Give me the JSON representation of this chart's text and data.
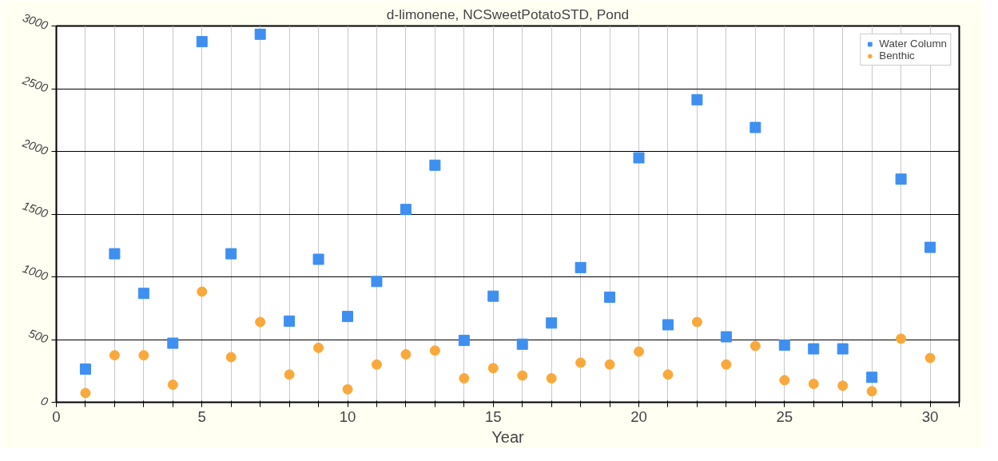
{
  "chart_data": {
    "type": "scatter",
    "title": "d-limonene, NCSweetPotatoSTD, Pond",
    "xlabel": "Year",
    "x": [
      1,
      2,
      3,
      4,
      5,
      6,
      7,
      8,
      9,
      10,
      11,
      12,
      13,
      14,
      15,
      16,
      17,
      18,
      19,
      20,
      21,
      22,
      23,
      24,
      25,
      26,
      27,
      28,
      29,
      30
    ],
    "series": [
      {
        "name": "Water Column",
        "color": "#3f8ff0",
        "marker": "square",
        "values": [
          265,
          1184,
          868,
          471,
          2875,
          1184,
          2934,
          647,
          1140,
          684,
          963,
          1537,
          1890,
          493,
          846,
          463,
          632,
          1074,
          838,
          1949,
          618,
          2412,
          522,
          2191,
          456,
          426,
          426,
          199,
          1779,
          1235
        ]
      },
      {
        "name": "Benthic",
        "color": "#f9a93b",
        "marker": "circle",
        "values": [
          74,
          375,
          375,
          140,
          882,
          360,
          640,
          221,
          434,
          103,
          301,
          382,
          412,
          191,
          272,
          213,
          191,
          316,
          301,
          404,
          221,
          640,
          301,
          449,
          176,
          147,
          132,
          88,
          507,
          353
        ]
      }
    ],
    "xlim": [
      0,
      31
    ],
    "xticks": [
      0,
      {
        "value": 1,
        "label": null
      },
      {
        "value": 2,
        "label": null
      },
      {
        "value": 3,
        "label": null
      },
      {
        "value": 4,
        "label": null
      },
      5,
      {
        "value": 6,
        "label": null
      },
      {
        "value": 7,
        "label": null
      },
      {
        "value": 8,
        "label": null
      },
      {
        "value": 9,
        "label": null
      },
      10,
      {
        "value": 11,
        "label": null
      },
      {
        "value": 12,
        "label": null
      },
      {
        "value": 13,
        "label": null
      },
      {
        "value": 14,
        "label": null
      },
      15,
      {
        "value": 16,
        "label": null
      },
      {
        "value": 17,
        "label": null
      },
      {
        "value": 18,
        "label": null
      },
      {
        "value": 19,
        "label": null
      },
      20,
      {
        "value": 21,
        "label": null
      },
      {
        "value": 22,
        "label": null
      },
      {
        "value": 23,
        "label": null
      },
      {
        "value": 24,
        "label": null
      },
      25,
      {
        "value": 26,
        "label": null
      },
      {
        "value": 27,
        "label": null
      },
      {
        "value": 28,
        "label": null
      },
      {
        "value": 29,
        "label": null
      },
      30,
      {
        "value": 31,
        "label": null
      }
    ],
    "ylim": [
      0,
      3000
    ],
    "yticks": [
      0,
      500,
      1000,
      1500,
      2000,
      2500,
      3000
    ],
    "grid": true,
    "legend": "top right"
  }
}
